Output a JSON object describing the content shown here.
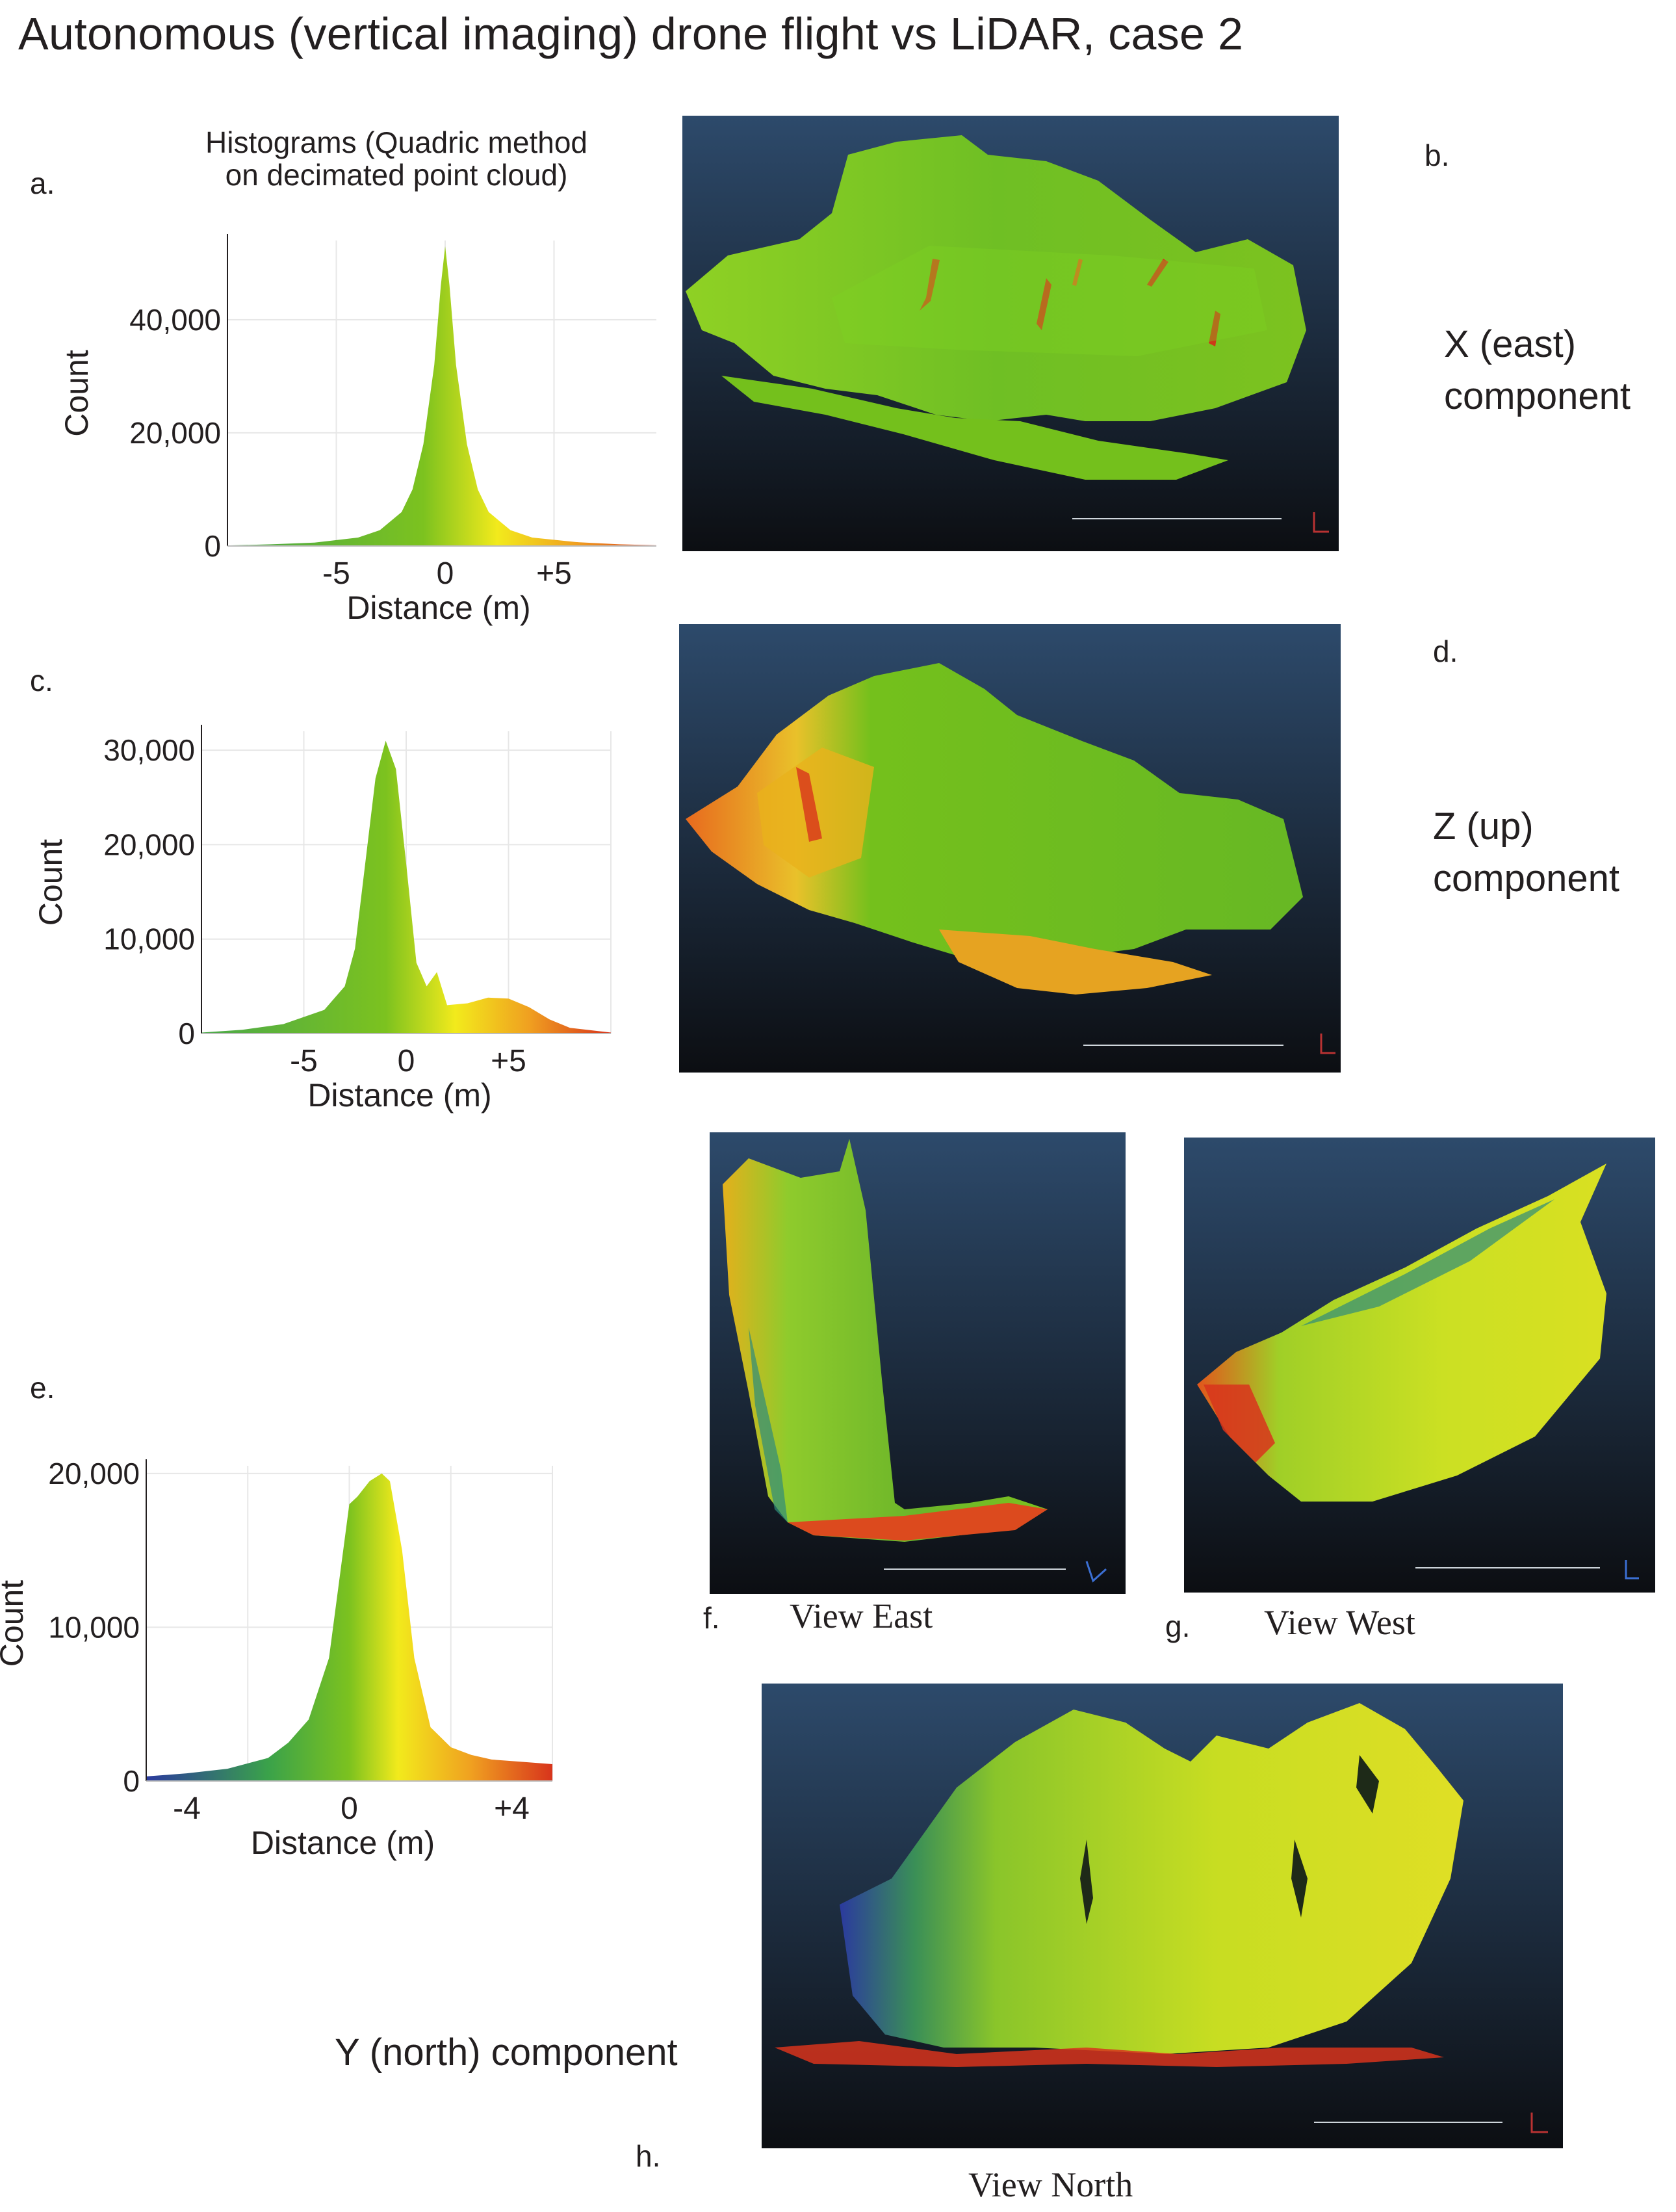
{
  "page": {
    "title": "Autonomous (vertical imaging) drone flight vs LiDAR, case 2"
  },
  "labels": {
    "a": "a.",
    "b": "b.",
    "c": "c.",
    "d": "d.",
    "e": "e.",
    "f": "f.",
    "g": "g.",
    "h": "h."
  },
  "hist_heading": [
    "Histograms (Quadric method",
    "on decimated point cloud)"
  ],
  "components": {
    "x": [
      "X (east)",
      "component"
    ],
    "z": [
      "Z (up)",
      "component"
    ],
    "y": "Y (north) component"
  },
  "views": {
    "east": "View East",
    "west": "View West",
    "north": "View North"
  },
  "colors": {
    "panel_top": "#2d4a6b",
    "panel_bottom": "#0c0e12",
    "green": "#7cc21f",
    "yellow": "#f2ea1c",
    "red": "#d8341c",
    "blue": "#2b3a9e"
  },
  "chart_data": [
    {
      "type": "area",
      "panel": "a",
      "xlabel": "Distance (m)",
      "ylabel": "Count",
      "xticks": [
        "-5",
        "0",
        "+5"
      ],
      "yticks": [
        "0",
        "20,000",
        "40,000"
      ],
      "xlim": [
        -10,
        10
      ],
      "ylim": [
        0,
        54000
      ],
      "grid": true,
      "x": [
        -10,
        -8,
        -6,
        -4,
        -3,
        -2,
        -1.5,
        -1,
        -0.5,
        -0.2,
        0,
        0.2,
        0.5,
        1,
        1.5,
        2,
        3,
        4,
        6,
        8,
        10
      ],
      "values": [
        100,
        300,
        600,
        1500,
        2800,
        6000,
        10000,
        18000,
        32000,
        46000,
        53000,
        46000,
        32000,
        18000,
        10000,
        6000,
        2800,
        1500,
        700,
        300,
        100
      ]
    },
    {
      "type": "area",
      "panel": "c",
      "xlabel": "Distance (m)",
      "ylabel": "Count",
      "xticks": [
        "-5",
        "0",
        "+5"
      ],
      "yticks": [
        "0",
        "10,000",
        "20,000",
        "30,000"
      ],
      "xlim": [
        -10,
        10
      ],
      "ylim": [
        0,
        32000
      ],
      "grid": true,
      "x": [
        -10,
        -8,
        -6,
        -4,
        -3,
        -2.5,
        -2,
        -1.5,
        -1,
        -0.5,
        0,
        0.5,
        1,
        1.5,
        2,
        3,
        4,
        5,
        6,
        7,
        8,
        10
      ],
      "values": [
        100,
        400,
        1000,
        2500,
        5000,
        9000,
        18000,
        27000,
        31000,
        28000,
        18000,
        7500,
        5000,
        6500,
        3000,
        3200,
        3800,
        3700,
        2800,
        1500,
        600,
        100
      ]
    },
    {
      "type": "area",
      "panel": "e",
      "xlabel": "Distance (m)",
      "ylabel": "Count",
      "xticks": [
        "-4",
        "0",
        "+4"
      ],
      "yticks": [
        "0",
        "10,000",
        "20,000"
      ],
      "xlim": [
        -5,
        5
      ],
      "ylim": [
        0,
        20500
      ],
      "grid": true,
      "x": [
        -5,
        -4,
        -3,
        -2,
        -1.5,
        -1,
        -0.5,
        0,
        0.2,
        0.5,
        0.8,
        1,
        1.3,
        1.6,
        2,
        2.5,
        3,
        3.5,
        4,
        4.5,
        5
      ],
      "values": [
        300,
        500,
        800,
        1500,
        2500,
        4000,
        8000,
        18000,
        18500,
        19500,
        20000,
        19500,
        15000,
        8000,
        3500,
        2200,
        1700,
        1400,
        1300,
        1200,
        1100
      ]
    }
  ]
}
